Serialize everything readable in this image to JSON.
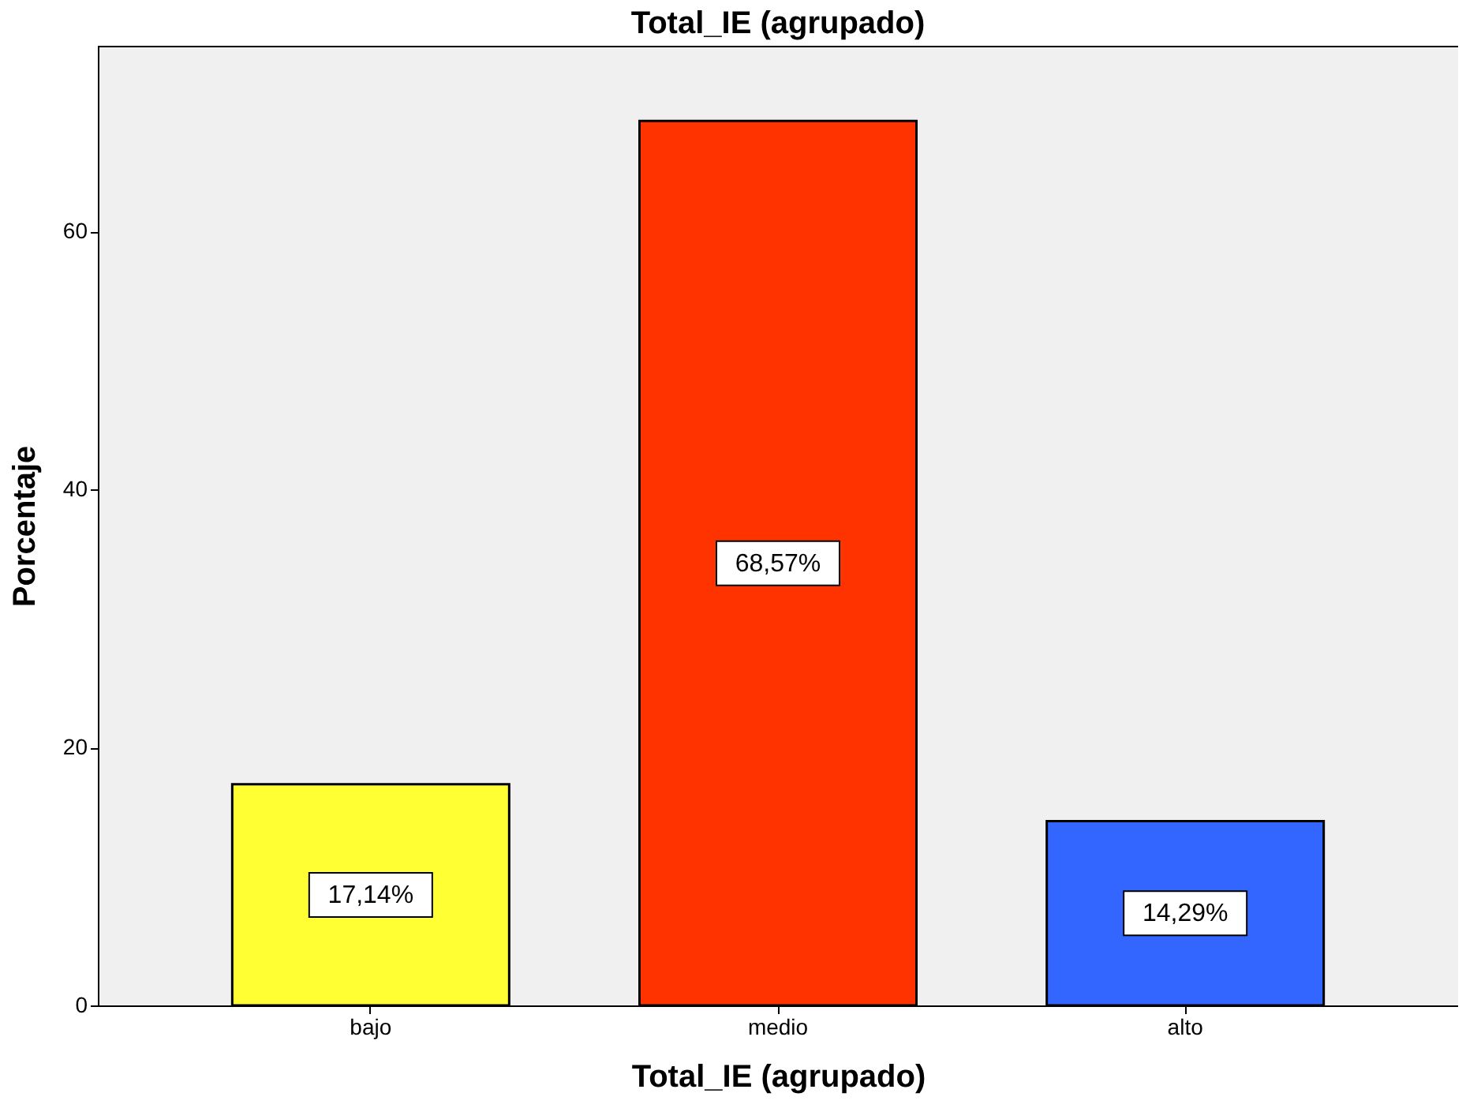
{
  "chart_data": {
    "type": "bar",
    "title": "Total_IE (agrupado)",
    "xlabel": "Total_IE (agrupado)",
    "ylabel": "Porcentaje",
    "categories": [
      "bajo",
      "medio",
      "alto"
    ],
    "values": [
      17.14,
      68.57,
      14.29
    ],
    "colors": [
      "#ffff33",
      "#ff3300",
      "#3366ff"
    ],
    "value_labels": [
      "17,14%",
      "68,57%",
      "14,29%"
    ],
    "ylim": [
      0,
      74.4
    ],
    "yticks": [
      0,
      20,
      40,
      60
    ],
    "grid": false
  }
}
